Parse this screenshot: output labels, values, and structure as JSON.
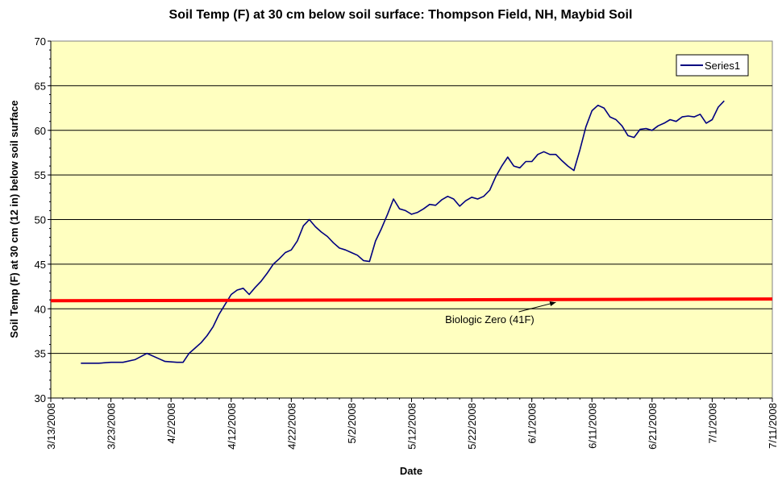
{
  "chart_data": {
    "type": "line",
    "title": "Soil Temp (F) at 30 cm below soil surface: Thompson Field, NH, Maybid Soil",
    "xlabel": "Date",
    "ylabel": "Soil Temp (F) at 30 cm (12 in) below soil surface",
    "ylim": [
      30,
      70
    ],
    "yticks": [
      "30",
      "35",
      "40",
      "45",
      "50",
      "55",
      "60",
      "65",
      "70"
    ],
    "xlim": [
      "2008-03-13",
      "2008-07-11"
    ],
    "xtick_dates": [
      "2008-03-13",
      "2008-03-23",
      "2008-04-02",
      "2008-04-12",
      "2008-04-22",
      "2008-05-02",
      "2008-05-12",
      "2008-05-22",
      "2008-06-01",
      "2008-06-11",
      "2008-06-21",
      "2008-07-01",
      "2008-07-11"
    ],
    "xticks": [
      "3/13/2008",
      "3/23/2008",
      "4/2/2008",
      "4/12/2008",
      "4/22/2008",
      "5/2/2008",
      "5/12/2008",
      "5/22/2008",
      "6/1/2008",
      "6/11/2008",
      "6/21/2008",
      "7/1/2008",
      "7/11/2008"
    ],
    "plot_background": "#ffffc0",
    "grid": true,
    "legend": {
      "position": "top-right",
      "entries": [
        "Series1"
      ]
    },
    "series": [
      {
        "name": "Series1",
        "color": "#000080",
        "points": [
          [
            "2008-03-18",
            33.9
          ],
          [
            "2008-03-21",
            33.9
          ],
          [
            "2008-03-23",
            34.0
          ],
          [
            "2008-03-25",
            34.0
          ],
          [
            "2008-03-27",
            34.3
          ],
          [
            "2008-03-29",
            35.0
          ],
          [
            "2008-03-31",
            34.4
          ],
          [
            "2008-04-01",
            34.1
          ],
          [
            "2008-04-03",
            34.0
          ],
          [
            "2008-04-04",
            34.0
          ],
          [
            "2008-04-05",
            35.0
          ],
          [
            "2008-04-06",
            35.6
          ],
          [
            "2008-04-07",
            36.2
          ],
          [
            "2008-04-08",
            37.0
          ],
          [
            "2008-04-09",
            38.0
          ],
          [
            "2008-04-10",
            39.4
          ],
          [
            "2008-04-11",
            40.5
          ],
          [
            "2008-04-12",
            41.6
          ],
          [
            "2008-04-13",
            42.1
          ],
          [
            "2008-04-14",
            42.3
          ],
          [
            "2008-04-15",
            41.6
          ],
          [
            "2008-04-16",
            42.4
          ],
          [
            "2008-04-17",
            43.1
          ],
          [
            "2008-04-18",
            44.0
          ],
          [
            "2008-04-19",
            45.0
          ],
          [
            "2008-04-20",
            45.6
          ],
          [
            "2008-04-21",
            46.3
          ],
          [
            "2008-04-22",
            46.6
          ],
          [
            "2008-04-23",
            47.6
          ],
          [
            "2008-04-24",
            49.3
          ],
          [
            "2008-04-25",
            50.0
          ],
          [
            "2008-04-26",
            49.2
          ],
          [
            "2008-04-27",
            48.6
          ],
          [
            "2008-04-28",
            48.1
          ],
          [
            "2008-04-29",
            47.4
          ],
          [
            "2008-04-30",
            46.8
          ],
          [
            "2008-05-01",
            46.6
          ],
          [
            "2008-05-02",
            46.3
          ],
          [
            "2008-05-03",
            46.0
          ],
          [
            "2008-05-04",
            45.4
          ],
          [
            "2008-05-05",
            45.3
          ],
          [
            "2008-05-06",
            47.6
          ],
          [
            "2008-05-07",
            49.0
          ],
          [
            "2008-05-08",
            50.6
          ],
          [
            "2008-05-09",
            52.3
          ],
          [
            "2008-05-10",
            51.2
          ],
          [
            "2008-05-11",
            51.0
          ],
          [
            "2008-05-12",
            50.6
          ],
          [
            "2008-05-13",
            50.8
          ],
          [
            "2008-05-14",
            51.2
          ],
          [
            "2008-05-15",
            51.7
          ],
          [
            "2008-05-16",
            51.6
          ],
          [
            "2008-05-17",
            52.2
          ],
          [
            "2008-05-18",
            52.6
          ],
          [
            "2008-05-19",
            52.3
          ],
          [
            "2008-05-20",
            51.5
          ],
          [
            "2008-05-21",
            52.1
          ],
          [
            "2008-05-22",
            52.5
          ],
          [
            "2008-05-23",
            52.3
          ],
          [
            "2008-05-24",
            52.6
          ],
          [
            "2008-05-25",
            53.3
          ],
          [
            "2008-05-26",
            54.8
          ],
          [
            "2008-05-27",
            56.0
          ],
          [
            "2008-05-28",
            57.0
          ],
          [
            "2008-05-29",
            56.0
          ],
          [
            "2008-05-30",
            55.8
          ],
          [
            "2008-05-31",
            56.5
          ],
          [
            "2008-06-01",
            56.5
          ],
          [
            "2008-06-02",
            57.3
          ],
          [
            "2008-06-03",
            57.6
          ],
          [
            "2008-06-04",
            57.3
          ],
          [
            "2008-06-05",
            57.3
          ],
          [
            "2008-06-06",
            56.6
          ],
          [
            "2008-06-07",
            56.0
          ],
          [
            "2008-06-08",
            55.5
          ],
          [
            "2008-06-09",
            57.8
          ],
          [
            "2008-06-10",
            60.4
          ],
          [
            "2008-06-11",
            62.2
          ],
          [
            "2008-06-12",
            62.8
          ],
          [
            "2008-06-13",
            62.5
          ],
          [
            "2008-06-14",
            61.5
          ],
          [
            "2008-06-15",
            61.2
          ],
          [
            "2008-06-16",
            60.5
          ],
          [
            "2008-06-17",
            59.4
          ],
          [
            "2008-06-18",
            59.2
          ],
          [
            "2008-06-19",
            60.1
          ],
          [
            "2008-06-20",
            60.2
          ],
          [
            "2008-06-21",
            60.0
          ],
          [
            "2008-06-22",
            60.5
          ],
          [
            "2008-06-23",
            60.8
          ],
          [
            "2008-06-24",
            61.2
          ],
          [
            "2008-06-25",
            61.0
          ],
          [
            "2008-06-26",
            61.5
          ],
          [
            "2008-06-27",
            61.6
          ],
          [
            "2008-06-28",
            61.5
          ],
          [
            "2008-06-29",
            61.8
          ],
          [
            "2008-06-30",
            60.8
          ],
          [
            "2008-07-01",
            61.2
          ],
          [
            "2008-07-02",
            62.6
          ],
          [
            "2008-07-03",
            63.3
          ]
        ]
      },
      {
        "name": "Biologic Zero",
        "color": "#ff0000",
        "points": [
          [
            "2008-03-13",
            40.9
          ],
          [
            "2008-07-11",
            41.1
          ]
        ]
      }
    ],
    "annotations": [
      {
        "text": "Biologic Zero (41F)",
        "x": "2008-05-25",
        "y": 38.4,
        "arrow_to": [
          "2008-06-05",
          41.0
        ]
      }
    ]
  }
}
